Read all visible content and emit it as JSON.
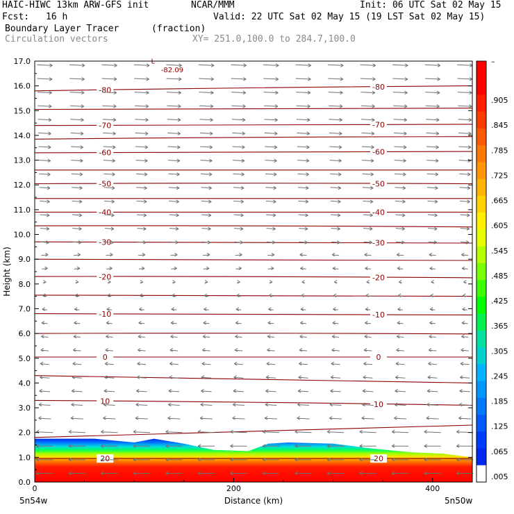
{
  "header": {
    "model": "HAIC-HIWC 13km ARW-GFS init",
    "org": "NCAR/MMM",
    "init": "Init: 06 UTC Sat 02 May 15",
    "fcst_label": "Fcst:",
    "fcst_value": "16 h",
    "valid": "Valid: 22 UTC Sat 02 May 15 (19 LST Sat 02 May 15)",
    "field": "Boundary Layer Tracer",
    "units": "(fraction)",
    "vectors": "Circulation vectors",
    "xy": "XY= 251.0,100.0 to 284.7,100.0"
  },
  "chart_data": {
    "type": "heatmap",
    "xlabel": "Distance (km)",
    "ylabel": "Height (km)",
    "xlim": [
      0,
      440
    ],
    "ylim": [
      0,
      17
    ],
    "x_ticks": [
      0,
      200,
      400
    ],
    "y_ticks": [
      "0.0",
      "1.0",
      "2.0",
      "3.0",
      "4.0",
      "5.0",
      "6.0",
      "7.0",
      "8.0",
      "9.0",
      "10.0",
      "11.0",
      "12.0",
      "13.0",
      "14.0",
      "15.0",
      "16.0",
      "17.0"
    ],
    "x_endpoints": [
      "5n54w",
      "5n50w"
    ],
    "colorbar": {
      "labels": [
        "–",
        ".905",
        ".845",
        ".785",
        ".725",
        ".665",
        ".605",
        ".545",
        ".485",
        ".425",
        ".365",
        ".305",
        ".245",
        ".185",
        ".125",
        ".065",
        ".005"
      ],
      "colors": [
        "#ff0000",
        "#ff0000",
        "#ff1e00",
        "#ff3c00",
        "#ff5a00",
        "#ff7800",
        "#ff9600",
        "#ffb400",
        "#ffd200",
        "#fff000",
        "#e6ff00",
        "#b4ff00",
        "#78ff00",
        "#3cff00",
        "#00ff00",
        "#00f050",
        "#00e0a0",
        "#00d2d2",
        "#00b4ff",
        "#0096ff",
        "#0078ff",
        "#005aff",
        "#003cff",
        "#0028f0",
        "#ffffff"
      ]
    },
    "temperature_contours": [
      {
        "height_left": 15.8,
        "height_right": 16.0,
        "label": "-80"
      },
      {
        "height_left": 15.05,
        "height_right": 15.1,
        "label": ""
      },
      {
        "height_left": 14.4,
        "height_right": 14.45,
        "label": "-70"
      },
      {
        "height_left": 13.85,
        "height_right": 13.95,
        "label": ""
      },
      {
        "height_left": 13.3,
        "height_right": 13.35,
        "label": "-60"
      },
      {
        "height_left": 12.6,
        "height_right": 12.6,
        "label": ""
      },
      {
        "height_left": 12.05,
        "height_right": 12.05,
        "label": "-50"
      },
      {
        "height_left": 11.45,
        "height_right": 11.45,
        "label": ""
      },
      {
        "height_left": 10.9,
        "height_right": 10.9,
        "label": "-40"
      },
      {
        "height_left": 10.35,
        "height_right": 10.3,
        "label": ""
      },
      {
        "height_left": 9.7,
        "height_right": 9.65,
        "label": "-30"
      },
      {
        "height_left": 9.0,
        "height_right": 8.95,
        "label": ""
      },
      {
        "height_left": 8.3,
        "height_right": 8.25,
        "label": "-20"
      },
      {
        "height_left": 7.55,
        "height_right": 7.5,
        "label": ""
      },
      {
        "height_left": 6.8,
        "height_right": 6.75,
        "label": "-10"
      },
      {
        "height_left": 6.0,
        "height_right": 5.98,
        "label": ""
      },
      {
        "height_left": 5.05,
        "height_right": 5.05,
        "label": "0"
      },
      {
        "height_left": 4.3,
        "height_right": 4.0,
        "label": ""
      },
      {
        "height_left": 3.3,
        "height_right": 3.1,
        "label": "10"
      },
      {
        "height_left": 1.8,
        "height_right": 2.3,
        "label": ""
      },
      {
        "height_left": 0.95,
        "height_right": 0.95,
        "label": "20"
      }
    ],
    "annotations": [
      {
        "text": "L",
        "x": 117,
        "y": 16.9
      },
      {
        "text": "-82.09",
        "x": 127,
        "y": 16.55
      }
    ]
  }
}
